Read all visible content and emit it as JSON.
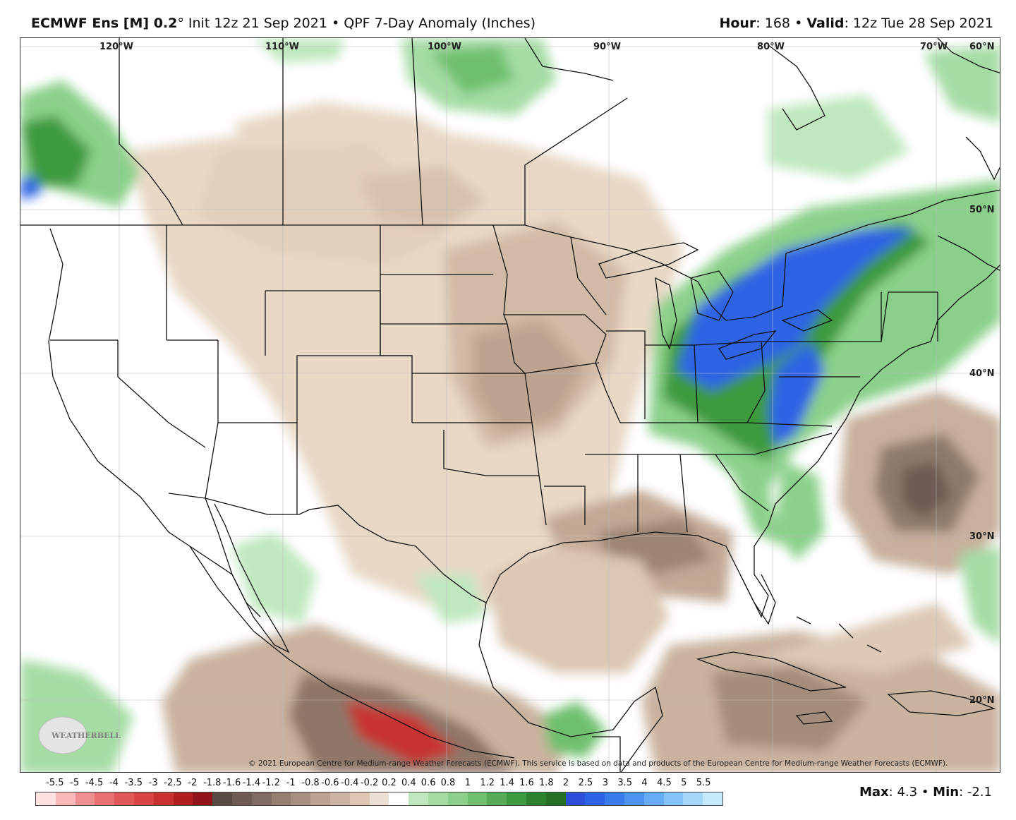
{
  "header": {
    "model": "ECMWF Ens [M] 0.2",
    "degree": "°",
    "init": "Init 12z 21 Sep 2021",
    "bullet": "•",
    "product": "QPF 7-Day Anomaly (Inches)",
    "hour_label": "Hour",
    "hour_value": ": 168",
    "valid_label": "Valid",
    "valid_value": ": 12z Tue 28 Sep 2021"
  },
  "longitude_labels": [
    "120°W",
    "110°W",
    "100°W",
    "90°W",
    "80°W",
    "70°W"
  ],
  "latitude_labels": [
    "60°N",
    "50°N",
    "40°N",
    "30°N",
    "20°N"
  ],
  "logo": {
    "text": "WEATHERBELL"
  },
  "copyright": "© 2021 European Centre for Medium-range Weather Forecasts (ECMWF). This service is based on data and products of the European Centre for Medium-range Weather Forecasts (ECMWF).",
  "legend": {
    "labels": [
      "-5.5",
      "-5",
      "-4.5",
      "-4",
      "-3.5",
      "-3",
      "-2.5",
      "-2",
      "-1.8",
      "-1.6",
      "-1.4",
      "-1.2",
      "-1",
      "-0.8",
      "-0.6",
      "-0.4",
      "-0.2",
      "0.2",
      "0.4",
      "0.6",
      "0.8",
      "1",
      "1.2",
      "1.4",
      "1.6",
      "1.8",
      "2",
      "2.5",
      "3",
      "3.5",
      "4",
      "4.5",
      "5",
      "5.5"
    ],
    "colors": [
      "#fde0e0",
      "#f8b8b8",
      "#f09090",
      "#e87070",
      "#e05858",
      "#d84444",
      "#c83030",
      "#b02020",
      "#90141a",
      "#5a4a44",
      "#6e5c54",
      "#806c62",
      "#957e72",
      "#a68f82",
      "#bba292",
      "#ccb4a2",
      "#dec6b3",
      "#ece0d4",
      "#ffffff",
      "#bfe8bf",
      "#a4dca4",
      "#8ad08a",
      "#6ec06e",
      "#55ac55",
      "#3e9a3e",
      "#2e842e",
      "#267026",
      "#2e4fd8",
      "#2e64e4",
      "#3a7cec",
      "#4c94f0",
      "#66acf4",
      "#84c4f8",
      "#a4d8fa",
      "#c4eafc"
    ]
  },
  "stats": {
    "max_label": "Max",
    "max_value": ": 4.3",
    "min_label": "Min",
    "min_value": ": -2.1",
    "bullet": "•"
  }
}
